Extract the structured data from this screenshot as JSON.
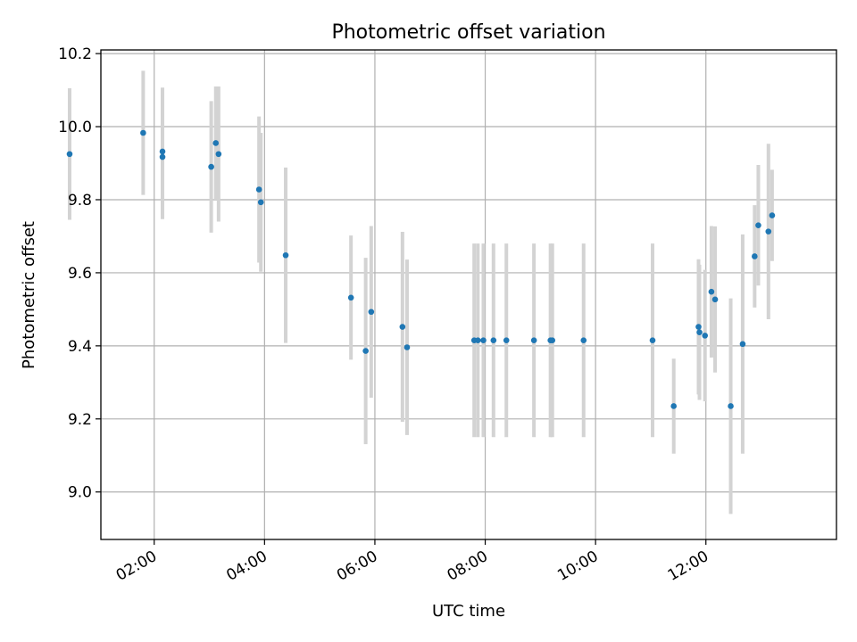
{
  "chart_data": {
    "type": "scatter",
    "title": "Photometric offset variation",
    "xlabel": "UTC time",
    "ylabel": "Photometric offset",
    "xlim": [
      "01:02",
      "14:22"
    ],
    "ylim": [
      8.87,
      10.21
    ],
    "x_ticks": [
      "02:00",
      "04:00",
      "06:00",
      "08:00",
      "10:00",
      "12:00"
    ],
    "y_ticks": [
      "9.0",
      "9.2",
      "9.4",
      "9.6",
      "9.8",
      "10.0",
      "10.2"
    ],
    "grid": true,
    "colors": {
      "points": "#1f77b4",
      "error_bars": "#d3d3d3"
    },
    "series": [
      {
        "points": [
          {
            "x": "00:28",
            "y": 9.925,
            "err": 0.18
          },
          {
            "x": "01:48",
            "y": 9.983,
            "err": 0.17
          },
          {
            "x": "02:09",
            "y": 9.932,
            "err": 0.175
          },
          {
            "x": "02:09",
            "y": 9.917,
            "err": 0.17
          },
          {
            "x": "03:02",
            "y": 9.89,
            "err": 0.18
          },
          {
            "x": "03:07",
            "y": 9.955,
            "err": 0.155
          },
          {
            "x": "03:10",
            "y": 9.925,
            "err": 0.185
          },
          {
            "x": "03:54",
            "y": 9.828,
            "err": 0.2
          },
          {
            "x": "03:56",
            "y": 9.793,
            "err": 0.19
          },
          {
            "x": "04:23",
            "y": 9.648,
            "err": 0.24
          },
          {
            "x": "05:34",
            "y": 9.532,
            "err": 0.17
          },
          {
            "x": "05:50",
            "y": 9.386,
            "err": 0.255
          },
          {
            "x": "05:56",
            "y": 9.493,
            "err": 0.235
          },
          {
            "x": "06:30",
            "y": 9.452,
            "err": 0.26
          },
          {
            "x": "06:35",
            "y": 9.396,
            "err": 0.24
          },
          {
            "x": "07:48",
            "y": 9.415,
            "err": 0.265
          },
          {
            "x": "07:52",
            "y": 9.415,
            "err": 0.265
          },
          {
            "x": "07:58",
            "y": 9.415,
            "err": 0.265
          },
          {
            "x": "08:09",
            "y": 9.415,
            "err": 0.265
          },
          {
            "x": "08:23",
            "y": 9.415,
            "err": 0.265
          },
          {
            "x": "08:53",
            "y": 9.415,
            "err": 0.265
          },
          {
            "x": "09:11",
            "y": 9.415,
            "err": 0.265
          },
          {
            "x": "09:13",
            "y": 9.415,
            "err": 0.265
          },
          {
            "x": "09:47",
            "y": 9.415,
            "err": 0.265
          },
          {
            "x": "11:02",
            "y": 9.415,
            "err": 0.265
          },
          {
            "x": "11:25",
            "y": 9.235,
            "err": 0.13
          },
          {
            "x": "11:52",
            "y": 9.452,
            "err": 0.185
          },
          {
            "x": "11:53",
            "y": 9.437,
            "err": 0.185
          },
          {
            "x": "11:59",
            "y": 9.428,
            "err": 0.18
          },
          {
            "x": "12:06",
            "y": 9.548,
            "err": 0.18
          },
          {
            "x": "12:10",
            "y": 9.527,
            "err": 0.2
          },
          {
            "x": "12:27",
            "y": 9.235,
            "err": 0.295
          },
          {
            "x": "12:40",
            "y": 9.405,
            "err": 0.3
          },
          {
            "x": "12:53",
            "y": 9.645,
            "err": 0.14
          },
          {
            "x": "12:57",
            "y": 9.73,
            "err": 0.165
          },
          {
            "x": "13:08",
            "y": 9.713,
            "err": 0.24
          },
          {
            "x": "13:12",
            "y": 9.757,
            "err": 0.125
          }
        ]
      }
    ]
  }
}
